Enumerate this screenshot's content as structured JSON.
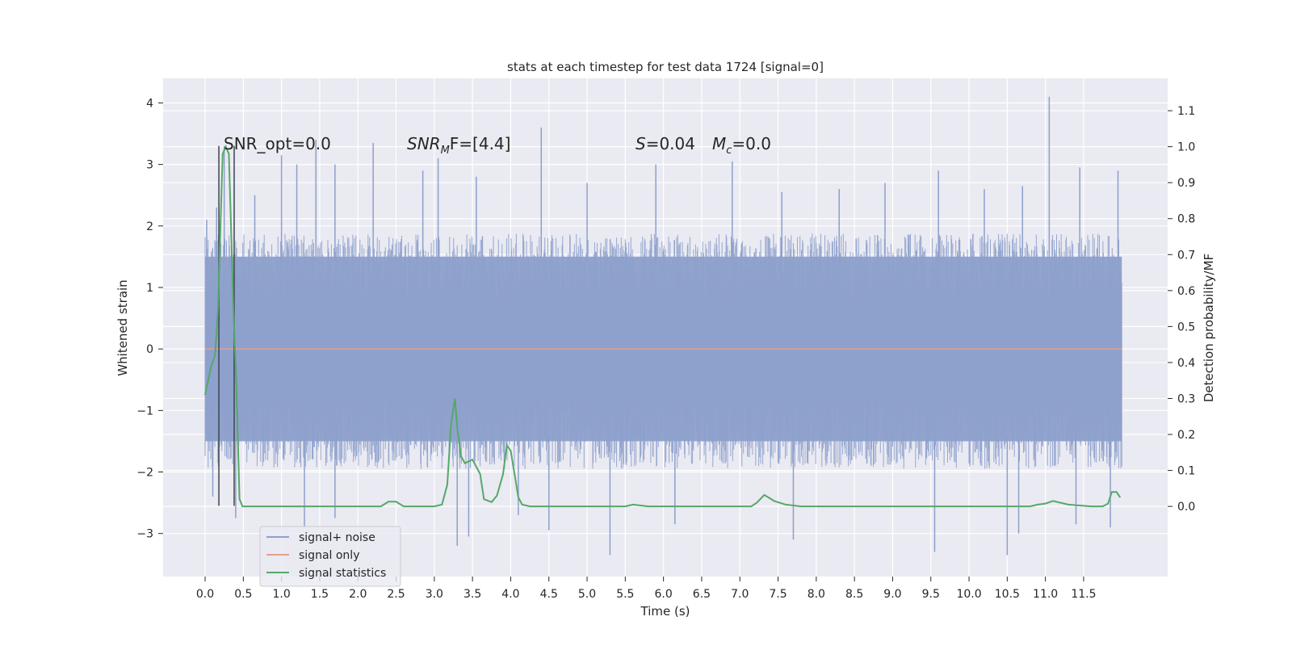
{
  "chart_data": {
    "type": "line",
    "title": "stats at each timestep for test data 1724 [signal=0]",
    "xlabel": "Time (s)",
    "ylabel_left": "Whitened strain",
    "ylabel_right": "Detection probability/MF",
    "xlim": [
      -0.55,
      12.6
    ],
    "ylim_left": [
      -3.7,
      4.4
    ],
    "ylim_right": [
      -0.195,
      1.19
    ],
    "x_ticks": [
      "0.0",
      "0.5",
      "1.0",
      "1.5",
      "2.0",
      "2.5",
      "3.0",
      "3.5",
      "4.0",
      "4.5",
      "5.0",
      "5.5",
      "6.0",
      "6.5",
      "7.0",
      "7.5",
      "8.0",
      "8.5",
      "9.0",
      "9.5",
      "10.0",
      "10.5",
      "11.0",
      "11.5"
    ],
    "y_left_ticks": [
      "4",
      "3",
      "2",
      "1",
      "0",
      "−1",
      "−2",
      "−3"
    ],
    "y_right_ticks": [
      "1.1",
      "1.0",
      "0.9",
      "0.8",
      "0.7",
      "0.6",
      "0.5",
      "0.4",
      "0.3",
      "0.2",
      "0.1",
      "0.0"
    ],
    "grid": true,
    "legend_position": "lower-left",
    "annotations": {
      "snr_opt": "SNR_opt=0.0",
      "snr_mf": "SNR",
      "snr_mf_sub": "M",
      "snr_mf_tail": "F=[4.4]",
      "s_label": "S",
      "s_value": "=0.04",
      "mc_label": "M",
      "mc_sub": "c",
      "mc_value": "=0.0"
    },
    "series": [
      {
        "name": "signal+ noise",
        "axis": "left",
        "color": "#8da0cb",
        "description_range": "whitened noise spanning t=0 to 12.0 s, band approx -1.5 to 1.5 with spikes to about +4.1 and -3.4",
        "x_range": [
          0.0,
          12.0
        ],
        "band": [
          -1.5,
          1.5
        ],
        "spikes_up": [
          [
            0.02,
            2.1
          ],
          [
            0.15,
            2.3
          ],
          [
            0.25,
            3.3
          ],
          [
            0.65,
            2.5
          ],
          [
            1.0,
            3.15
          ],
          [
            1.2,
            3.0
          ],
          [
            1.45,
            3.4
          ],
          [
            1.7,
            3.0
          ],
          [
            2.2,
            3.35
          ],
          [
            2.85,
            2.9
          ],
          [
            3.05,
            3.1
          ],
          [
            3.55,
            2.8
          ],
          [
            4.4,
            3.6
          ],
          [
            5.0,
            2.7
          ],
          [
            5.9,
            3.0
          ],
          [
            6.9,
            3.05
          ],
          [
            7.55,
            2.55
          ],
          [
            8.3,
            2.6
          ],
          [
            8.9,
            2.7
          ],
          [
            9.6,
            2.9
          ],
          [
            10.2,
            2.6
          ],
          [
            10.7,
            2.65
          ],
          [
            11.05,
            4.1
          ],
          [
            11.45,
            2.95
          ],
          [
            11.95,
            2.9
          ]
        ],
        "spikes_down": [
          [
            0.1,
            -2.4
          ],
          [
            0.4,
            -2.75
          ],
          [
            1.3,
            -2.9
          ],
          [
            1.7,
            -2.75
          ],
          [
            3.3,
            -3.2
          ],
          [
            3.45,
            -3.05
          ],
          [
            4.1,
            -2.7
          ],
          [
            4.5,
            -2.95
          ],
          [
            5.3,
            -3.35
          ],
          [
            6.15,
            -2.85
          ],
          [
            7.7,
            -3.1
          ],
          [
            9.55,
            -3.3
          ],
          [
            10.5,
            -3.35
          ],
          [
            10.65,
            -3.0
          ],
          [
            11.4,
            -2.85
          ],
          [
            11.85,
            -2.9
          ]
        ]
      },
      {
        "name": "signal only",
        "axis": "left",
        "color": "#e5a089",
        "x": [
          0.0,
          12.0
        ],
        "y": [
          0.0,
          0.0
        ]
      },
      {
        "name": "signal statistics",
        "axis": "right",
        "color": "#55a868",
        "x": [
          0.0,
          0.08,
          0.13,
          0.17,
          0.2,
          0.23,
          0.27,
          0.31,
          0.34,
          0.37,
          0.41,
          0.45,
          0.49,
          0.52,
          0.56,
          0.6,
          0.7,
          0.9,
          1.2,
          1.6,
          2.0,
          2.3,
          2.4,
          2.5,
          2.6,
          2.8,
          3.0,
          3.1,
          3.17,
          3.22,
          3.27,
          3.3,
          3.35,
          3.4,
          3.5,
          3.6,
          3.65,
          3.75,
          3.82,
          3.9,
          3.95,
          4.0,
          4.05,
          4.1,
          4.15,
          4.25,
          4.5,
          4.8,
          5.0,
          5.3,
          5.5,
          5.6,
          5.8,
          6.2,
          6.6,
          7.0,
          7.15,
          7.22,
          7.32,
          7.45,
          7.6,
          7.8,
          8.0,
          8.5,
          9.0,
          9.5,
          9.9,
          10.1,
          10.5,
          10.8,
          10.9,
          11.0,
          11.1,
          11.3,
          11.6,
          11.75,
          11.82,
          11.87,
          11.93,
          11.98
        ],
        "y": [
          0.31,
          0.39,
          0.42,
          0.55,
          0.78,
          0.98,
          1.0,
          0.98,
          0.77,
          0.55,
          0.33,
          0.02,
          0.0,
          0.0,
          0.0,
          0.0,
          0.0,
          0.0,
          0.0,
          0.0,
          0.0,
          0.0,
          0.013,
          0.013,
          0.0,
          0.0,
          0.0,
          0.005,
          0.06,
          0.23,
          0.3,
          0.22,
          0.14,
          0.12,
          0.13,
          0.09,
          0.02,
          0.012,
          0.03,
          0.09,
          0.17,
          0.155,
          0.09,
          0.025,
          0.005,
          0.0,
          0.0,
          0.0,
          0.0,
          0.0,
          0.0,
          0.005,
          0.0,
          0.0,
          0.0,
          0.0,
          0.0,
          0.01,
          0.032,
          0.015,
          0.005,
          0.0,
          0.0,
          0.0,
          0.0,
          0.0,
          0.0,
          0.0,
          0.0,
          0.0,
          0.005,
          0.008,
          0.015,
          0.005,
          0.0,
          0.0,
          0.008,
          0.04,
          0.04,
          0.025
        ]
      }
    ],
    "vertical_markers": {
      "color": "#3d4451",
      "x": [
        0.18,
        0.38
      ],
      "y_range": [
        -2.55,
        3.3
      ]
    }
  }
}
